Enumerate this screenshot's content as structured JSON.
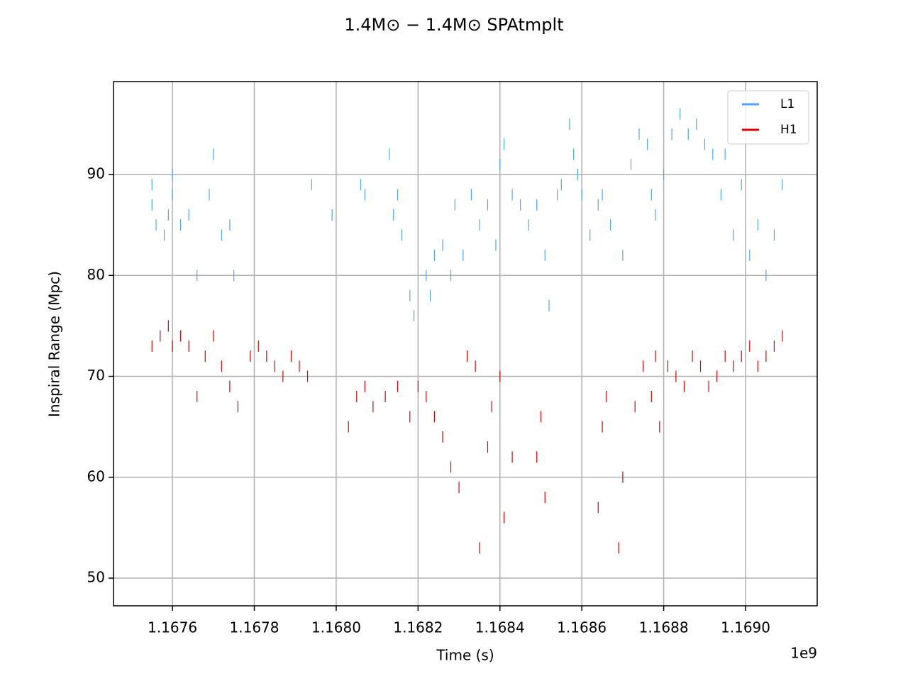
{
  "chart_data": {
    "type": "scatter",
    "title": "1.4M⊙ − 1.4M⊙ SPAtmplt",
    "x_label": "Time (s)",
    "y_label": "Inspiral Range (Mpc)",
    "x_offset_label": "1e9",
    "xlim": [
      1.167456,
      1.169175
    ],
    "ylim": [
      47.26,
      99.21
    ],
    "xticks": [
      1.1676,
      1.1678,
      {
        "value": 1.168,
        "label": "1.1680"
      },
      1.1682,
      1.1684,
      1.1686,
      1.1688,
      {
        "value": 1.169,
        "label": "1.1690"
      }
    ],
    "yticks": [
      50,
      60,
      70,
      80,
      90
    ],
    "grid": true,
    "legend": "upper right",
    "series": [
      {
        "name": "L1",
        "color": "#4da6ff",
        "x": [
          1.16755,
          1.16755,
          1.16756,
          1.16758,
          1.16759,
          1.1676,
          1.1676,
          1.16762,
          1.16764,
          1.16766,
          1.16769,
          1.1677,
          1.16772,
          1.16774,
          1.16775,
          1.16794,
          1.16799,
          1.16806,
          1.16807,
          1.16813,
          1.16814,
          1.16815,
          1.16816,
          1.16818,
          1.16819,
          1.16822,
          1.16823,
          1.16824,
          1.16826,
          1.16828,
          1.16829,
          1.16831,
          1.16833,
          1.16835,
          1.16837,
          1.16839,
          1.1684,
          1.16841,
          1.16843,
          1.16845,
          1.16847,
          1.16849,
          1.16851,
          1.16852,
          1.16854,
          1.16855,
          1.16857,
          1.16858,
          1.16859,
          1.1686,
          1.16862,
          1.16864,
          1.16865,
          1.16867,
          1.1687,
          1.16872,
          1.16874,
          1.16876,
          1.16877,
          1.16878,
          1.1688,
          1.16882,
          1.16884,
          1.16886,
          1.16888,
          1.1689,
          1.16892,
          1.16894,
          1.16895,
          1.16897,
          1.16899,
          1.16901,
          1.16903,
          1.16905,
          1.16907,
          1.16909
        ],
        "values": [
          89,
          87,
          85,
          84,
          86,
          88,
          90,
          85,
          86,
          80,
          88,
          92,
          84,
          85,
          80,
          89,
          86,
          89,
          88,
          92,
          86,
          88,
          84,
          78,
          76,
          80,
          78,
          82,
          83,
          80,
          87,
          82,
          88,
          85,
          87,
          83,
          91,
          93,
          88,
          87,
          85,
          87,
          82,
          77,
          88,
          89,
          95,
          92,
          90,
          88,
          84,
          87,
          88,
          85,
          82,
          91,
          94,
          93,
          88,
          86,
          90,
          94,
          96,
          94,
          95,
          93,
          92,
          88,
          92,
          84,
          89,
          82,
          85,
          80,
          84,
          89
        ]
      },
      {
        "name": "H1",
        "color": "#e00000",
        "x": [
          1.16755,
          1.16757,
          1.16759,
          1.1676,
          1.16762,
          1.16764,
          1.16766,
          1.16768,
          1.1677,
          1.16772,
          1.16774,
          1.16776,
          1.16779,
          1.16781,
          1.16783,
          1.16785,
          1.16787,
          1.16789,
          1.16791,
          1.16793,
          1.16803,
          1.16805,
          1.16807,
          1.16809,
          1.16812,
          1.16815,
          1.16818,
          1.1682,
          1.16822,
          1.16824,
          1.16826,
          1.16828,
          1.1683,
          1.16832,
          1.16834,
          1.16835,
          1.16837,
          1.16838,
          1.1684,
          1.16841,
          1.16843,
          1.16849,
          1.1685,
          1.16851,
          1.16864,
          1.16865,
          1.16866,
          1.16869,
          1.1687,
          1.16873,
          1.16875,
          1.16877,
          1.16878,
          1.16879,
          1.16881,
          1.16883,
          1.16885,
          1.16887,
          1.16889,
          1.16891,
          1.16893,
          1.16895,
          1.16897,
          1.16899,
          1.16901,
          1.16903,
          1.16905,
          1.16907,
          1.16909
        ],
        "values": [
          73,
          74,
          75,
          73,
          74,
          73,
          68,
          72,
          74,
          71,
          69,
          67,
          72,
          73,
          72,
          71,
          70,
          72,
          71,
          70,
          65,
          68,
          69,
          67,
          68,
          69,
          66,
          69,
          68,
          66,
          64,
          61,
          59,
          72,
          71,
          53,
          63,
          67,
          70,
          56,
          62,
          62,
          66,
          58,
          57,
          65,
          68,
          53,
          60,
          67,
          71,
          68,
          72,
          65,
          71,
          70,
          69,
          72,
          71,
          69,
          70,
          72,
          71,
          72,
          73,
          71,
          72,
          73,
          74
        ]
      }
    ]
  }
}
